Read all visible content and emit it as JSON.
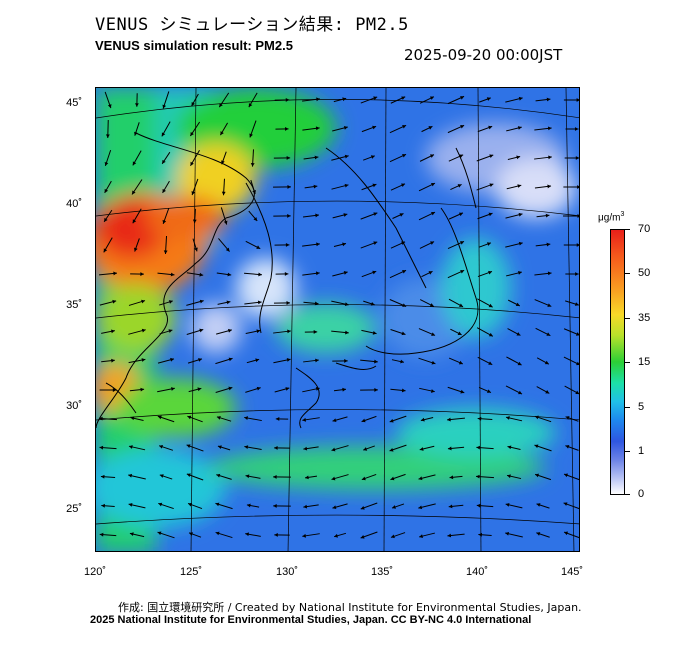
{
  "header": {
    "title_jp": "VENUS シミュレーション結果: PM2.5",
    "title_en": "VENUS simulation result: PM2.5",
    "timestamp": "2025-09-20 00:00JST"
  },
  "map": {
    "lat_labels": [
      "45˚",
      "40˚",
      "35˚",
      "30˚",
      "25˚"
    ],
    "lon_labels": [
      "120˚",
      "125˚",
      "130˚",
      "135˚",
      "140˚",
      "145˚"
    ],
    "land_outline_color": "#000000",
    "arrow_color": "#000000"
  },
  "colorbar": {
    "unit": "μg/m",
    "unit_sup": "3",
    "labels": [
      "70",
      "50",
      "35",
      "15",
      "5",
      "1",
      "0"
    ],
    "colors": [
      "#e8201a",
      "#f89a21",
      "#f8d928",
      "#2ccf36",
      "#20c0e8",
      "#2e56e0",
      "#ffffff"
    ]
  },
  "footer": {
    "credit_jp": "作成: 国立環境研究所 / Created by National Institute for Environmental Studies, Japan.",
    "credit_en": "2025 National Institute for Environmental Studies, Japan. CC BY-NC 4.0 International"
  }
}
